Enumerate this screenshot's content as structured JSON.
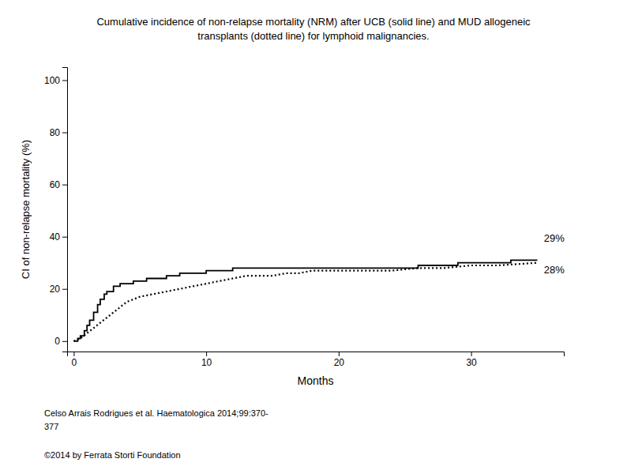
{
  "chart_data": {
    "type": "line",
    "title": [
      "Cumulative incidence of non-relapse mortality (NRM) after UCB (solid line) and MUD allogeneic",
      "transplants (dotted line) for lymphoid malignancies."
    ],
    "x_label": "Months",
    "y_label": "CI of non-relapse mortality (%)",
    "xlim": [
      -0.5,
      37
    ],
    "ylim": [
      -4,
      105
    ],
    "xticks": [
      0,
      10,
      20,
      30
    ],
    "yticks": [
      0,
      20,
      40,
      60,
      80,
      100
    ],
    "grid": false,
    "series": [
      {
        "type": "step",
        "line_style": "solid",
        "color": "#000000",
        "x": [
          0,
          0.3,
          0.5,
          0.8,
          1.0,
          1.2,
          1.5,
          1.8,
          2.0,
          2.3,
          2.5,
          3.0,
          3.5,
          4.0,
          4.5,
          5.0,
          5.5,
          6.0,
          7.0,
          8.0,
          9.0,
          10.0,
          11.0,
          12.0,
          13.0,
          14.0,
          15.0,
          16.0,
          17.0,
          18.0,
          19.0,
          20.0,
          22.0,
          24.0,
          26.0,
          27.0,
          28.0,
          29.0,
          30.0,
          31.0,
          32.0,
          33.0,
          35.0
        ],
        "values": [
          0,
          1,
          2,
          4,
          6,
          8,
          11,
          14,
          16,
          18,
          19,
          21,
          22,
          22,
          23,
          23,
          24,
          24,
          25,
          26,
          26,
          27,
          27,
          28,
          28,
          28,
          28,
          28,
          28,
          28,
          28,
          28,
          28,
          28,
          29,
          29,
          29,
          30,
          30,
          30,
          30,
          31,
          31
        ]
      },
      {
        "type": "line",
        "line_style": "dotted",
        "color": "#000000",
        "x": [
          0,
          0.5,
          1.0,
          1.5,
          2.0,
          2.5,
          3.0,
          3.5,
          4.0,
          5.0,
          6.0,
          7.0,
          8.0,
          9.0,
          10.0,
          11.0,
          12.0,
          13.0,
          14.0,
          15.0,
          16.0,
          17.0,
          18.0,
          19.0,
          20.0,
          22.0,
          24.0,
          26.0,
          28.0,
          30.0,
          32.0,
          35.0
        ],
        "values": [
          0,
          1,
          3,
          5,
          7,
          9,
          11,
          13,
          15,
          17,
          18,
          19,
          20,
          21,
          22,
          23,
          24,
          25,
          25,
          25,
          26,
          26,
          27,
          27,
          27,
          27,
          27,
          28,
          28,
          29,
          29,
          30
        ]
      }
    ],
    "annotations": [
      {
        "text": "29%",
        "x": 35.5,
        "y": 38,
        "color": "#000000"
      },
      {
        "text": "28%",
        "x": 35.5,
        "y": 26,
        "color": "#000000"
      }
    ],
    "caption": [
      "Celso Arrais Rodrigues et al. Haematologica 2014;99:370-",
      "377"
    ],
    "copyright": "©2014 by Ferrata Storti Foundation"
  }
}
